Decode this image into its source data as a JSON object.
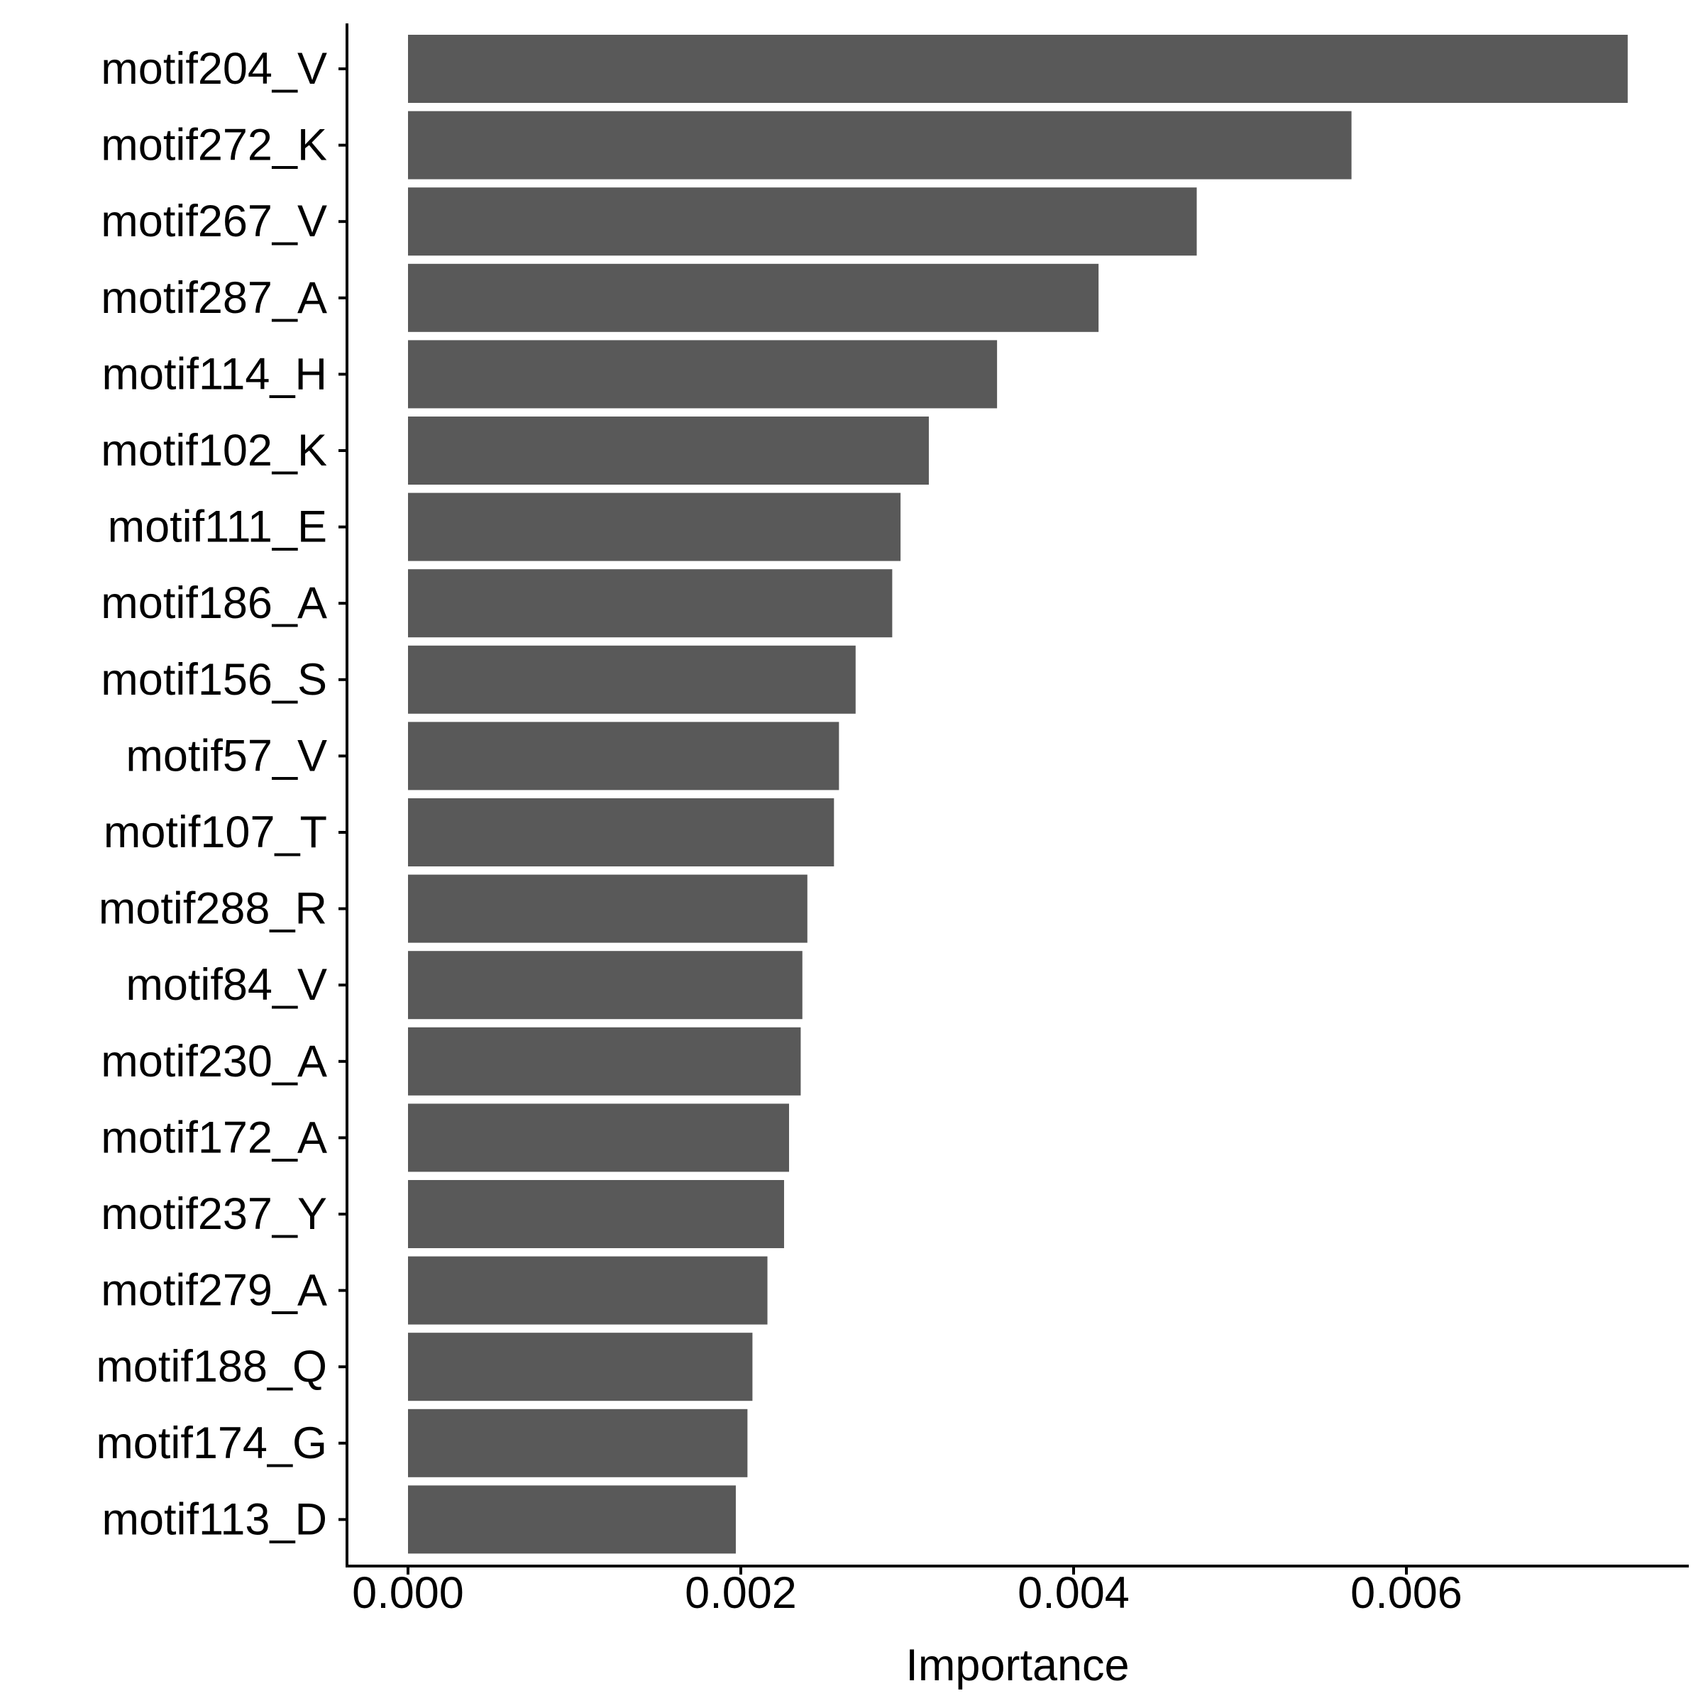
{
  "chart_data": {
    "type": "bar",
    "orientation": "horizontal",
    "title": "",
    "xlabel": "Importance",
    "ylabel": "",
    "xlim": [
      0,
      0.0074
    ],
    "xticks": [
      0.0,
      0.002,
      0.004,
      0.006
    ],
    "xtick_labels": [
      "0.000",
      "0.002",
      "0.004",
      "0.006"
    ],
    "grid": false,
    "bar_color": "#595959",
    "categories": [
      "motif204_V",
      "motif272_K",
      "motif267_V",
      "motif287_A",
      "motif114_H",
      "motif102_K",
      "motif111_E",
      "motif186_A",
      "motif156_S",
      "motif57_V",
      "motif107_T",
      "motif288_R",
      "motif84_V",
      "motif230_A",
      "motif172_A",
      "motif237_Y",
      "motif279_A",
      "motif188_Q",
      "motif174_G",
      "motif113_D"
    ],
    "values": [
      0.00733,
      0.00567,
      0.00474,
      0.00415,
      0.00354,
      0.00313,
      0.00296,
      0.00291,
      0.00269,
      0.00259,
      0.00256,
      0.0024,
      0.00237,
      0.00236,
      0.00229,
      0.00226,
      0.00216,
      0.00207,
      0.00204,
      0.00197
    ]
  }
}
